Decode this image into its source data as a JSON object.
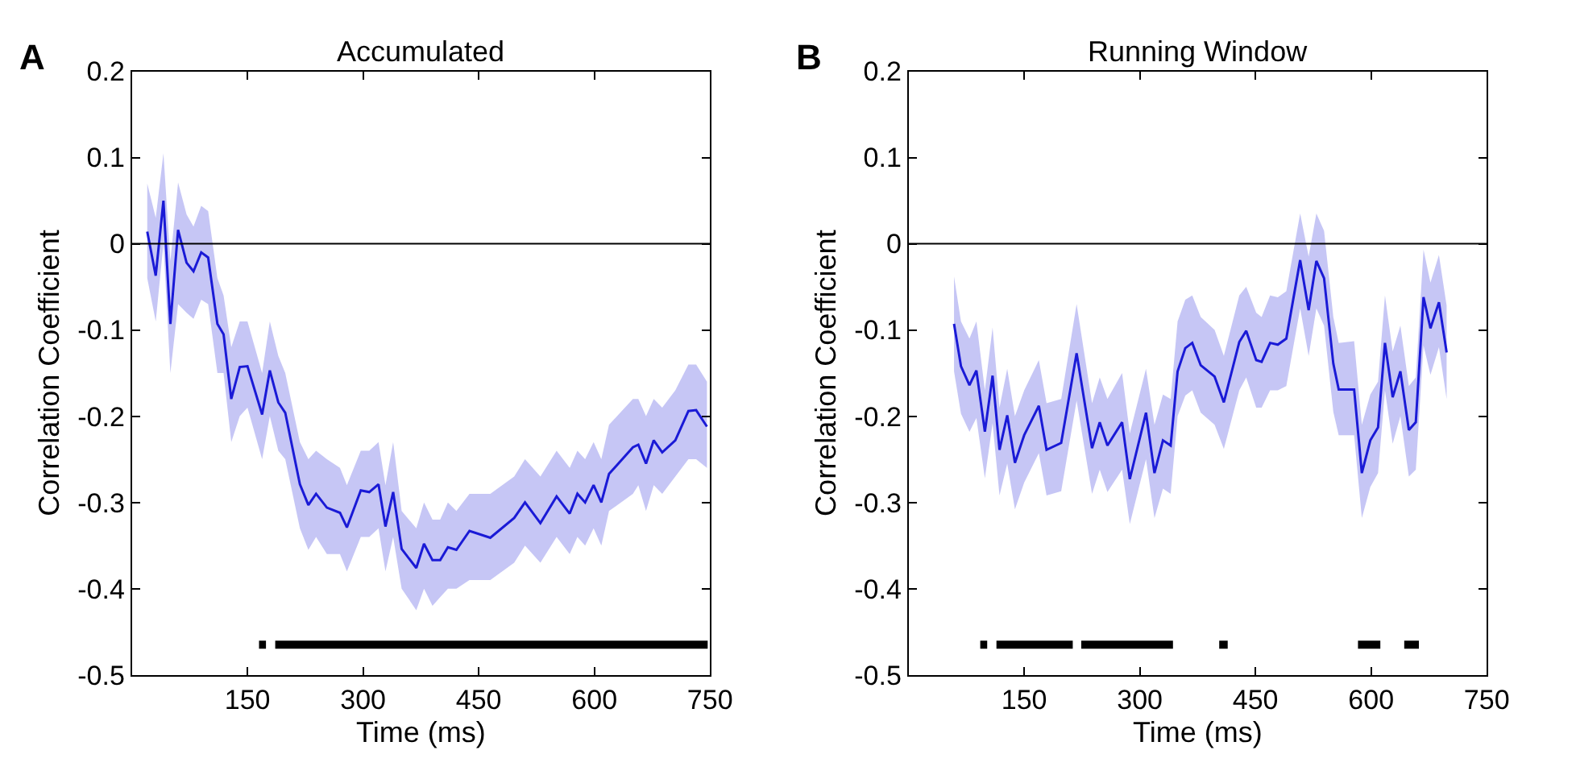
{
  "chart_data": [
    {
      "type": "line",
      "title": "Accumulated",
      "xlabel": "Time (ms)",
      "ylabel": "Correlation Coefficient",
      "annotations": [
        "A"
      ],
      "xlim": [
        0,
        750
      ],
      "xticks": [
        150,
        300,
        450,
        600,
        750
      ],
      "ylim": [
        -0.5,
        0.2
      ],
      "yticks": [
        -0.5,
        -0.4,
        -0.3,
        -0.2,
        -0.1,
        0,
        0.1,
        0.2
      ],
      "ref_lines": [
        {
          "axis": "y",
          "value": 0,
          "color": "#000000"
        }
      ],
      "series": [
        {
          "color": "#1a1ad6",
          "x": [
            20,
            31,
            41,
            50,
            60,
            71,
            80,
            90,
            99,
            111,
            119,
            129,
            140,
            150,
            169,
            179,
            190,
            199,
            218,
            229,
            239,
            253,
            270,
            279,
            297,
            308,
            320,
            329,
            339,
            350,
            369,
            379,
            390,
            400,
            410,
            421,
            438,
            465,
            496,
            510,
            530,
            551,
            568,
            578,
            588,
            599,
            609,
            619,
            650,
            657,
            667,
            677,
            688,
            705,
            722,
            732,
            746
          ],
          "values": [
            0.014,
            -0.037,
            0.05,
            -0.093,
            0.016,
            -0.022,
            -0.032,
            -0.01,
            -0.016,
            -0.093,
            -0.105,
            -0.18,
            -0.143,
            -0.142,
            -0.198,
            -0.147,
            -0.184,
            -0.196,
            -0.279,
            -0.303,
            -0.29,
            -0.306,
            -0.312,
            -0.329,
            -0.286,
            -0.288,
            -0.279,
            -0.328,
            -0.288,
            -0.354,
            -0.376,
            -0.348,
            -0.367,
            -0.367,
            -0.352,
            -0.355,
            -0.333,
            -0.341,
            -0.318,
            -0.3,
            -0.324,
            -0.293,
            -0.313,
            -0.29,
            -0.3,
            -0.28,
            -0.3,
            -0.267,
            -0.236,
            -0.233,
            -0.255,
            -0.228,
            -0.242,
            -0.228,
            -0.194,
            -0.193,
            -0.212
          ],
          "upper": [
            0.07,
            0.03,
            0.105,
            -0.02,
            0.071,
            0.034,
            0.02,
            0.044,
            0.038,
            -0.04,
            -0.06,
            -0.12,
            -0.09,
            -0.09,
            -0.15,
            -0.09,
            -0.13,
            -0.15,
            -0.23,
            -0.25,
            -0.24,
            -0.25,
            -0.26,
            -0.28,
            -0.24,
            -0.24,
            -0.23,
            -0.28,
            -0.23,
            -0.31,
            -0.33,
            -0.3,
            -0.32,
            -0.32,
            -0.3,
            -0.31,
            -0.29,
            -0.29,
            -0.27,
            -0.25,
            -0.27,
            -0.24,
            -0.26,
            -0.24,
            -0.25,
            -0.23,
            -0.25,
            -0.21,
            -0.18,
            -0.18,
            -0.2,
            -0.18,
            -0.19,
            -0.17,
            -0.14,
            -0.14,
            -0.16
          ],
          "lower": [
            -0.04,
            -0.09,
            0.0,
            -0.15,
            -0.07,
            -0.08,
            -0.087,
            -0.065,
            -0.07,
            -0.15,
            -0.15,
            -0.23,
            -0.2,
            -0.19,
            -0.25,
            -0.2,
            -0.24,
            -0.25,
            -0.33,
            -0.355,
            -0.34,
            -0.36,
            -0.36,
            -0.38,
            -0.34,
            -0.34,
            -0.33,
            -0.38,
            -0.34,
            -0.4,
            -0.425,
            -0.4,
            -0.42,
            -0.41,
            -0.4,
            -0.4,
            -0.39,
            -0.39,
            -0.37,
            -0.35,
            -0.37,
            -0.34,
            -0.36,
            -0.34,
            -0.35,
            -0.33,
            -0.35,
            -0.31,
            -0.29,
            -0.28,
            -0.31,
            -0.28,
            -0.29,
            -0.27,
            -0.25,
            -0.25,
            -0.26
          ]
        },
        {
          "color": "#000000",
          "x": [
            165,
            174,
            180,
            186,
            747
          ],
          "values": [
            -0.465,
            -0.465,
            null,
            -0.465,
            -0.465
          ]
        }
      ]
    },
    {
      "type": "line",
      "title": "Running Window",
      "xlabel": "Time (ms)",
      "ylabel": "Correlation Coefficient",
      "annotations": [
        "B"
      ],
      "xlim": [
        0,
        750
      ],
      "xticks": [
        150,
        300,
        450,
        600,
        750
      ],
      "ylim": [
        -0.5,
        0.2
      ],
      "yticks": [
        -0.5,
        -0.4,
        -0.3,
        -0.2,
        -0.1,
        0,
        0.1,
        0.2
      ],
      "ref_lines": [
        {
          "axis": "y",
          "value": 0,
          "color": "#000000"
        }
      ],
      "series": [
        {
          "color": "#1a1ad6",
          "x": [
            59,
            68,
            79,
            88,
            99,
            109,
            118,
            128,
            138,
            150,
            169,
            179,
            198,
            218,
            238,
            248,
            258,
            277,
            287,
            308,
            319,
            330,
            340,
            349,
            359,
            368,
            379,
            397,
            409,
            429,
            438,
            451,
            458,
            469,
            479,
            490,
            508,
            519,
            529,
            539,
            551,
            558,
            578,
            588,
            599,
            609,
            618,
            628,
            638,
            649,
            658,
            668,
            677,
            688,
            698
          ],
          "values": [
            -0.093,
            -0.142,
            -0.164,
            -0.147,
            -0.218,
            -0.153,
            -0.239,
            -0.199,
            -0.254,
            -0.222,
            -0.188,
            -0.239,
            -0.231,
            -0.127,
            -0.237,
            -0.207,
            -0.234,
            -0.207,
            -0.273,
            -0.196,
            -0.266,
            -0.228,
            -0.234,
            -0.148,
            -0.121,
            -0.115,
            -0.141,
            -0.154,
            -0.184,
            -0.114,
            -0.101,
            -0.135,
            -0.137,
            -0.115,
            -0.117,
            -0.11,
            -0.019,
            -0.077,
            -0.02,
            -0.04,
            -0.139,
            -0.169,
            -0.169,
            -0.266,
            -0.228,
            -0.213,
            -0.115,
            -0.178,
            -0.148,
            -0.216,
            -0.207,
            -0.062,
            -0.098,
            -0.068,
            -0.126
          ],
          "upper": [
            -0.038,
            -0.09,
            -0.11,
            -0.09,
            -0.17,
            -0.097,
            -0.19,
            -0.145,
            -0.2,
            -0.17,
            -0.135,
            -0.185,
            -0.18,
            -0.07,
            -0.185,
            -0.155,
            -0.18,
            -0.15,
            -0.22,
            -0.145,
            -0.21,
            -0.175,
            -0.18,
            -0.09,
            -0.065,
            -0.06,
            -0.085,
            -0.1,
            -0.13,
            -0.06,
            -0.05,
            -0.08,
            -0.085,
            -0.06,
            -0.062,
            -0.055,
            0.035,
            -0.015,
            0.035,
            0.015,
            -0.085,
            -0.115,
            -0.113,
            -0.21,
            -0.175,
            -0.16,
            -0.06,
            -0.125,
            -0.095,
            -0.165,
            -0.155,
            -0.007,
            -0.045,
            -0.013,
            -0.072
          ],
          "lower": [
            -0.148,
            -0.197,
            -0.218,
            -0.202,
            -0.272,
            -0.208,
            -0.292,
            -0.255,
            -0.308,
            -0.277,
            -0.243,
            -0.292,
            -0.287,
            -0.182,
            -0.29,
            -0.262,
            -0.288,
            -0.262,
            -0.325,
            -0.25,
            -0.318,
            -0.284,
            -0.29,
            -0.2,
            -0.176,
            -0.17,
            -0.196,
            -0.21,
            -0.238,
            -0.17,
            -0.155,
            -0.19,
            -0.19,
            -0.17,
            -0.17,
            -0.165,
            -0.075,
            -0.13,
            -0.075,
            -0.095,
            -0.195,
            -0.222,
            -0.222,
            -0.318,
            -0.282,
            -0.266,
            -0.17,
            -0.232,
            -0.2,
            -0.27,
            -0.262,
            -0.118,
            -0.152,
            -0.12,
            -0.18
          ]
        },
        {
          "color": "#000000",
          "x": [
            93,
            102,
            108,
            114,
            213,
            218,
            224,
            343,
            373,
            403,
            414,
            500,
            583,
            612,
            628,
            643,
            662
          ],
          "values": [
            -0.465,
            -0.465,
            null,
            -0.465,
            -0.465,
            null,
            -0.465,
            -0.465,
            null,
            -0.465,
            -0.465,
            null,
            -0.465,
            -0.465,
            null,
            -0.465,
            -0.465
          ]
        }
      ]
    }
  ]
}
